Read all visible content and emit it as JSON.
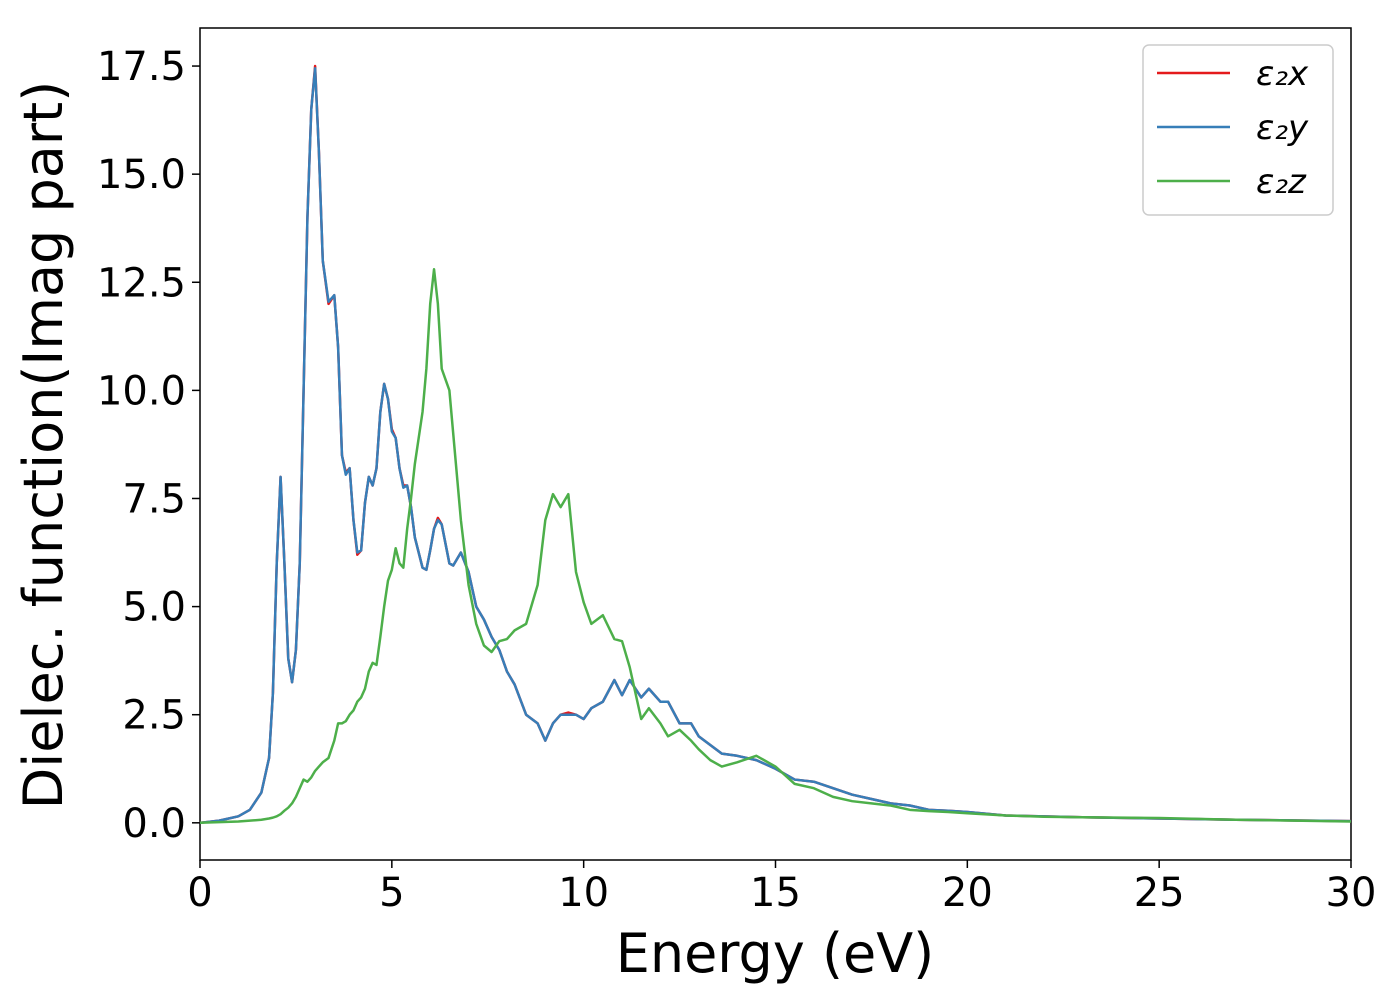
{
  "chart_data": {
    "type": "line",
    "xlabel": "Energy (eV)",
    "ylabel": "Dielec. function(Imag part)",
    "xlim": [
      0,
      30
    ],
    "ylim": [
      -0.86,
      18.38
    ],
    "xticks": [
      0,
      5,
      10,
      15,
      20,
      25,
      30
    ],
    "yticks": [
      {
        "value": 0,
        "label": "0.0"
      },
      2.5,
      {
        "value": 5,
        "label": "5.0"
      },
      7.5,
      {
        "value": 10,
        "label": "10.0"
      },
      12.5,
      {
        "value": 15,
        "label": "15.0"
      },
      17.5
    ],
    "legend": "upper right",
    "x": [
      0,
      0.5,
      1,
      1.3,
      1.6,
      1.8,
      1.9,
      2.0,
      2.1,
      2.2,
      2.3,
      2.4,
      2.5,
      2.6,
      2.7,
      2.8,
      2.9,
      3.0,
      3.1,
      3.2,
      3.35,
      3.5,
      3.6,
      3.7,
      3.8,
      3.9,
      4.0,
      4.1,
      4.2,
      4.3,
      4.4,
      4.5,
      4.6,
      4.7,
      4.8,
      4.9,
      5.0,
      5.1,
      5.2,
      5.3,
      5.4,
      5.5,
      5.6,
      5.8,
      5.9,
      6.0,
      6.1,
      6.2,
      6.3,
      6.5,
      6.6,
      6.8,
      7.0,
      7.2,
      7.4,
      7.6,
      7.8,
      8.0,
      8.2,
      8.5,
      8.8,
      9.0,
      9.2,
      9.4,
      9.6,
      9.8,
      10.0,
      10.2,
      10.5,
      10.8,
      11.0,
      11.2,
      11.5,
      11.7,
      12.0,
      12.2,
      12.5,
      12.8,
      13.0,
      13.3,
      13.6,
      14.0,
      14.5,
      15.0,
      15.5,
      16.0,
      16.5,
      17.0,
      17.5,
      18.0,
      18.5,
      19.0,
      19.5,
      20,
      21,
      22,
      23,
      25,
      27,
      30
    ],
    "series": [
      {
        "name": "ε₂x",
        "color": "#e41a1c",
        "values": [
          0,
          0.05,
          0.15,
          0.3,
          0.7,
          1.5,
          3,
          6,
          8.0,
          6,
          3.8,
          3.25,
          4,
          6,
          10,
          14,
          16.5,
          17.5,
          15.5,
          13,
          12,
          12.2,
          11,
          8.5,
          8.1,
          8.2,
          7,
          6.2,
          6.3,
          7.4,
          8.0,
          7.8,
          8.2,
          9.5,
          10.15,
          9.8,
          9.1,
          8.9,
          8.2,
          7.8,
          7.8,
          7.3,
          6.6,
          5.9,
          5.85,
          6.3,
          6.8,
          7.05,
          6.9,
          6.0,
          5.95,
          6.25,
          5.8,
          5.0,
          4.7,
          4.3,
          4.0,
          3.5,
          3.2,
          2.5,
          2.3,
          1.9,
          2.3,
          2.5,
          2.55,
          2.5,
          2.4,
          2.65,
          2.8,
          3.3,
          2.95,
          3.3,
          2.9,
          3.1,
          2.8,
          2.8,
          2.3,
          2.3,
          2.0,
          1.8,
          1.6,
          1.55,
          1.45,
          1.25,
          1.0,
          0.95,
          0.8,
          0.65,
          0.55,
          0.45,
          0.4,
          0.3,
          0.28,
          0.25,
          0.17,
          0.15,
          0.13,
          0.1,
          0.07,
          0.04
        ]
      },
      {
        "name": "ε₂y",
        "color": "#377eb8",
        "values": [
          0,
          0.05,
          0.15,
          0.3,
          0.7,
          1.5,
          3,
          6,
          8.0,
          6,
          3.8,
          3.25,
          4,
          6,
          10,
          14,
          16.5,
          17.45,
          15.5,
          13,
          12.05,
          12.2,
          11,
          8.5,
          8.05,
          8.2,
          7,
          6.25,
          6.3,
          7.4,
          8.0,
          7.8,
          8.2,
          9.5,
          10.15,
          9.8,
          9.05,
          8.9,
          8.2,
          7.75,
          7.8,
          7.3,
          6.6,
          5.9,
          5.85,
          6.3,
          6.8,
          7.0,
          6.9,
          6.0,
          5.95,
          6.25,
          5.8,
          5.0,
          4.7,
          4.3,
          4.0,
          3.5,
          3.2,
          2.5,
          2.3,
          1.9,
          2.3,
          2.5,
          2.5,
          2.5,
          2.4,
          2.65,
          2.8,
          3.3,
          2.95,
          3.3,
          2.9,
          3.1,
          2.8,
          2.8,
          2.3,
          2.3,
          2.0,
          1.8,
          1.6,
          1.55,
          1.45,
          1.25,
          1.0,
          0.95,
          0.8,
          0.65,
          0.55,
          0.45,
          0.4,
          0.3,
          0.28,
          0.25,
          0.17,
          0.15,
          0.13,
          0.1,
          0.07,
          0.04
        ]
      },
      {
        "name": "ε₂z",
        "color": "#4daf4a",
        "values": [
          0,
          0.015,
          0.03,
          0.05,
          0.07,
          0.1,
          0.12,
          0.15,
          0.2,
          0.28,
          0.35,
          0.45,
          0.6,
          0.8,
          1.0,
          0.95,
          1.05,
          1.2,
          1.3,
          1.4,
          1.5,
          1.9,
          2.3,
          2.3,
          2.35,
          2.5,
          2.6,
          2.8,
          2.9,
          3.1,
          3.5,
          3.7,
          3.65,
          4.3,
          5.0,
          5.6,
          5.85,
          6.35,
          6.0,
          5.9,
          6.8,
          7.5,
          8.3,
          9.5,
          10.5,
          12,
          12.8,
          12,
          10.5,
          10.0,
          9.0,
          7.0,
          5.5,
          4.6,
          4.1,
          3.95,
          4.2,
          4.25,
          4.45,
          4.6,
          5.5,
          7.0,
          7.6,
          7.3,
          7.6,
          5.8,
          5.1,
          4.6,
          4.8,
          4.25,
          4.2,
          3.6,
          2.4,
          2.65,
          2.3,
          2.0,
          2.15,
          1.9,
          1.7,
          1.45,
          1.3,
          1.4,
          1.55,
          1.3,
          0.9,
          0.8,
          0.6,
          0.5,
          0.45,
          0.4,
          0.3,
          0.27,
          0.25,
          0.22,
          0.17,
          0.14,
          0.13,
          0.11,
          0.07,
          0.03
        ]
      }
    ]
  }
}
